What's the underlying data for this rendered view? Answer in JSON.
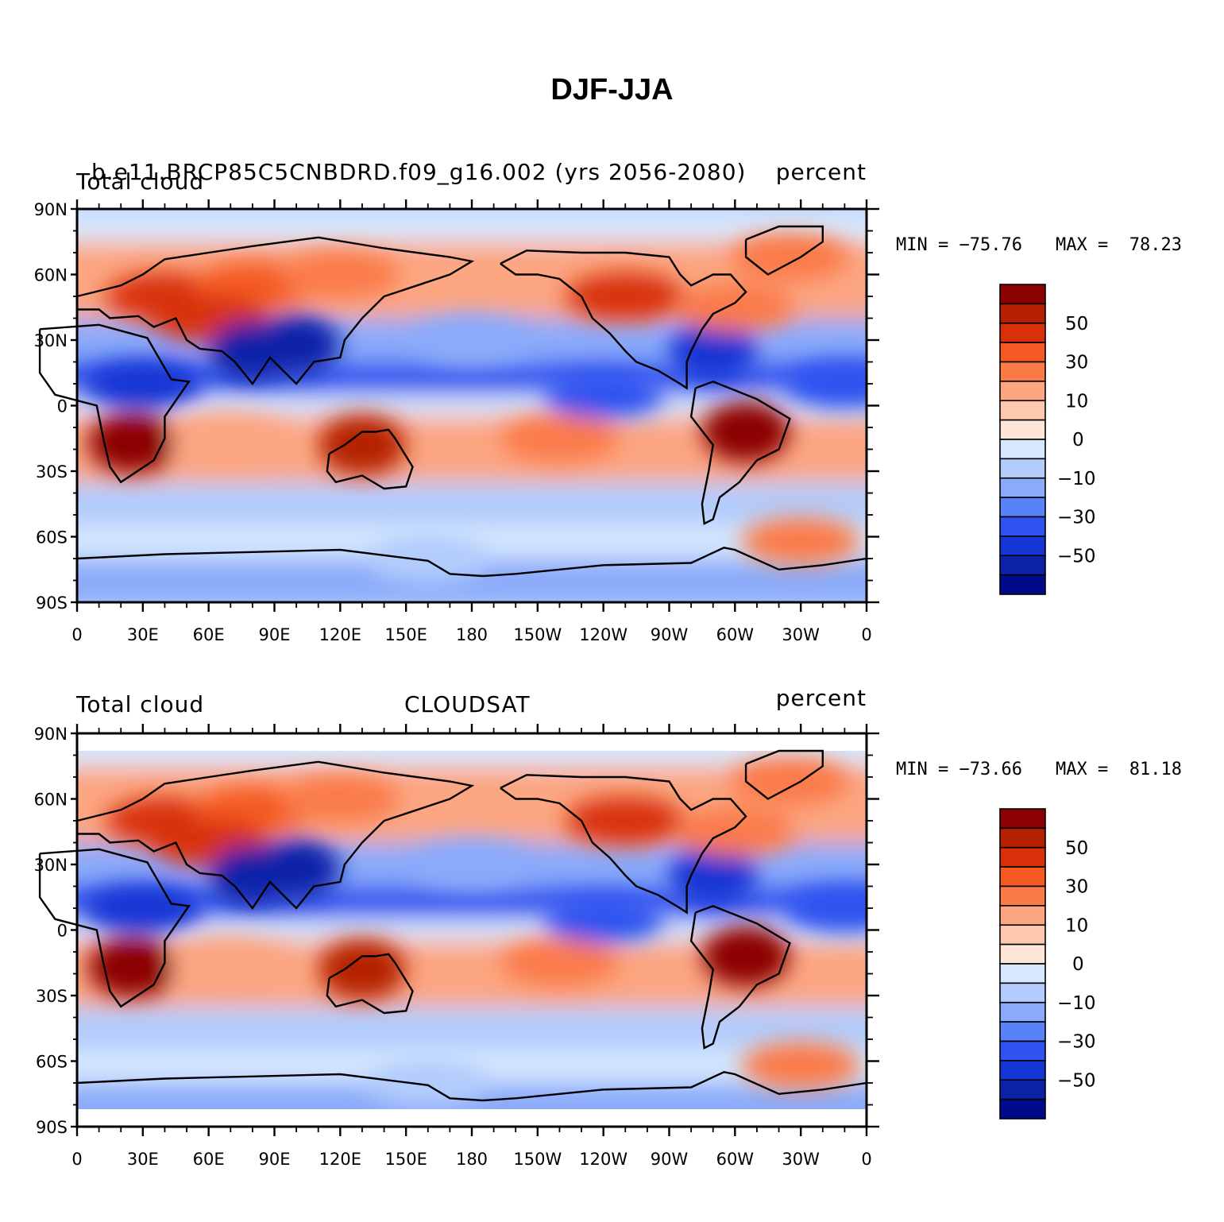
{
  "title": "DJF-JJA",
  "panels": [
    {
      "id": "model",
      "left_title": "Total cloud",
      "center_title": "b.e11.BRCP85C5CNBDRD.f09_g16.002 (yrs 2056-2080)",
      "right_title": "percent",
      "min_label": "MIN = −75.76",
      "max_label": "MAX =  78.23",
      "data_lat_extent": [
        -90,
        90
      ]
    },
    {
      "id": "obs",
      "left_title": "Total cloud",
      "center_title": "CLOUDSAT",
      "right_title": "percent",
      "min_label": "MIN = −73.66",
      "max_label": "MAX =  81.18",
      "data_lat_extent": [
        -82,
        82
      ]
    }
  ],
  "axes": {
    "lat_ticks": [
      "90N",
      "60N",
      "30N",
      "0",
      "30S",
      "60S",
      "90S"
    ],
    "lon_ticks": [
      "0",
      "30E",
      "60E",
      "90E",
      "120E",
      "150E",
      "180",
      "150W",
      "120W",
      "90W",
      "60W",
      "30W",
      "0"
    ],
    "lon_range": [
      0,
      360
    ],
    "lat_range": [
      -90,
      90
    ]
  },
  "colorbar": {
    "levels": [
      -60,
      -50,
      -40,
      -30,
      -20,
      -10,
      -5,
      0,
      5,
      10,
      20,
      30,
      40,
      50,
      60
    ],
    "labels": [
      "50",
      "30",
      "10",
      "0",
      "−10",
      "−30",
      "−50"
    ],
    "colors": [
      "#8b0000",
      "#b52000",
      "#d83008",
      "#f55a24",
      "#fa7a48",
      "#fca682",
      "#fdc8ad",
      "#fee6d6",
      "#d6e8fe",
      "#b2ccfc",
      "#8aaafa",
      "#5a82f8",
      "#2f52f0",
      "#1436d4",
      "#0a22a8",
      "#000a8a"
    ]
  },
  "chart_data": {
    "type": "heatmap",
    "variable": "Total cloud",
    "units": "percent",
    "season_difference": "DJF-JJA",
    "panels": [
      {
        "name": "b.e11.BRCP85C5CNBDRD.f09_g16.002 (yrs 2056-2080)",
        "min": -75.76,
        "max": 78.23
      },
      {
        "name": "CLOUDSAT",
        "min": -73.66,
        "max": 81.18
      }
    ],
    "xlim": [
      0,
      360
    ],
    "ylim": [
      -90,
      90
    ],
    "colorbar_levels": [
      -60,
      -50,
      -40,
      -30,
      -20,
      -10,
      -5,
      0,
      5,
      10,
      20,
      30,
      40,
      50,
      60
    ],
    "regions": [
      {
        "lon": 40,
        "lat": 50,
        "value": 40
      },
      {
        "lon": 80,
        "lat": 55,
        "value": 35
      },
      {
        "lon": 120,
        "lat": 60,
        "value": 25
      },
      {
        "lon": 60,
        "lat": 40,
        "value": 45
      },
      {
        "lon": 25,
        "lat": -17,
        "value": 60
      },
      {
        "lon": 130,
        "lat": -18,
        "value": 55
      },
      {
        "lon": 305,
        "lat": -12,
        "value": 60
      },
      {
        "lon": 290,
        "lat": 25,
        "value": -50
      },
      {
        "lon": 80,
        "lat": 25,
        "value": -55
      },
      {
        "lon": 100,
        "lat": 28,
        "value": -60
      },
      {
        "lon": 30,
        "lat": 10,
        "value": -45
      },
      {
        "lon": 240,
        "lat": 5,
        "value": -35
      },
      {
        "lon": 350,
        "lat": 10,
        "value": -40
      },
      {
        "lon": 220,
        "lat": -15,
        "value": 25
      },
      {
        "lon": 70,
        "lat": -15,
        "value": 15
      },
      {
        "lon": 180,
        "lat": 30,
        "value": -20
      },
      {
        "lon": 325,
        "lat": 68,
        "value": 25
      },
      {
        "lon": 250,
        "lat": 50,
        "value": 40
      },
      {
        "lon": 300,
        "lat": 45,
        "value": 20
      },
      {
        "lon": 160,
        "lat": -70,
        "value": -10
      },
      {
        "lon": 330,
        "lat": -62,
        "value": 20
      }
    ]
  }
}
